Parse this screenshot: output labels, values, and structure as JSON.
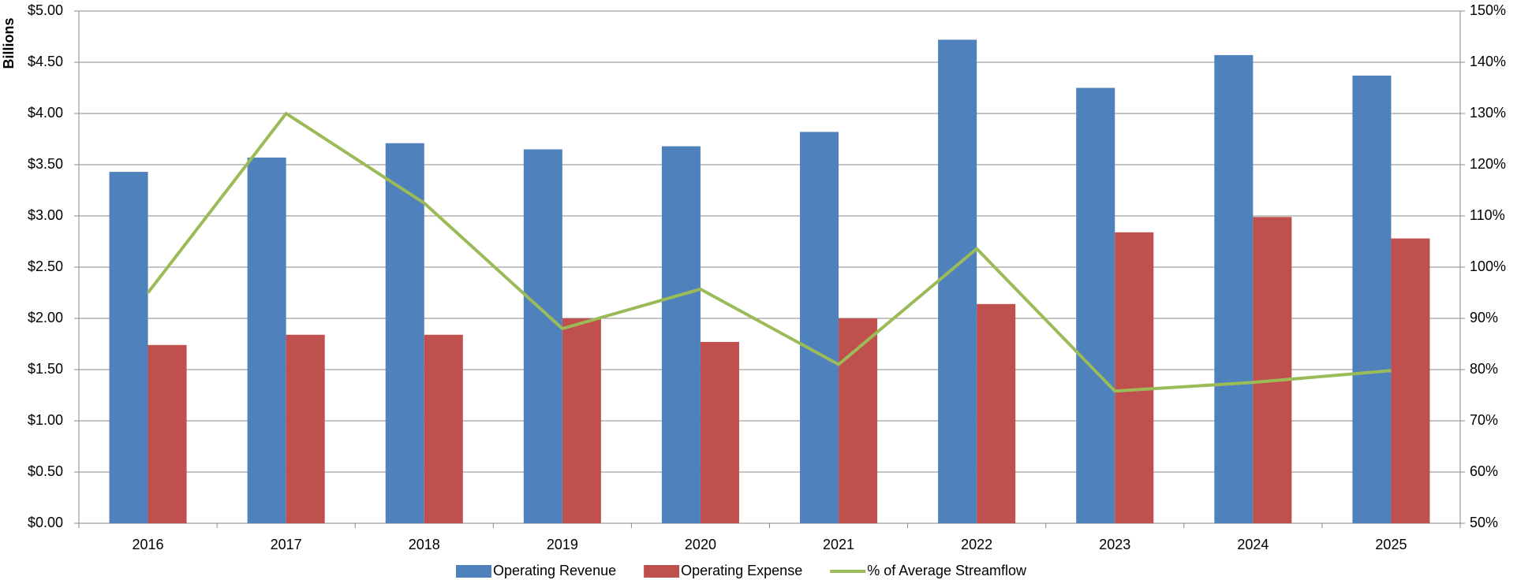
{
  "chart_data": {
    "type": "bar",
    "y_label": "Billions",
    "categories": [
      "2016",
      "2017",
      "2018",
      "2019",
      "2020",
      "2021",
      "2022",
      "2023",
      "2024",
      "2025"
    ],
    "series": [
      {
        "name": "Operating Revenue",
        "color": "#4f81bd",
        "type": "bar",
        "values": [
          3.43,
          3.57,
          3.71,
          3.65,
          3.68,
          3.82,
          4.72,
          4.25,
          4.57,
          4.37
        ]
      },
      {
        "name": "Operating Expense",
        "color": "#c0504d",
        "type": "bar",
        "values": [
          1.74,
          1.84,
          1.84,
          2.0,
          1.77,
          2.0,
          2.14,
          2.84,
          2.99,
          2.78
        ]
      },
      {
        "name": "% of Average Streamflow",
        "color": "#9bbb59",
        "type": "line",
        "axis": "y2",
        "values": [
          95,
          130,
          112.5,
          88,
          95.7,
          81,
          103.6,
          75.8,
          77.5,
          79.8
        ]
      }
    ],
    "ylim": [
      0,
      5
    ],
    "yticks": [
      {
        "value": 0,
        "label": "$0.00"
      },
      {
        "value": 0.5,
        "label": "$0.50"
      },
      {
        "value": 1,
        "label": "$1.00"
      },
      {
        "value": 1.5,
        "label": "$1.50"
      },
      {
        "value": 2,
        "label": "$2.00"
      },
      {
        "value": 2.5,
        "label": "$2.50"
      },
      {
        "value": 3,
        "label": "$3.00"
      },
      {
        "value": 3.5,
        "label": "$3.50"
      },
      {
        "value": 4,
        "label": "$4.00"
      },
      {
        "value": 4.5,
        "label": "$4.50"
      },
      {
        "value": 5,
        "label": "$5.00"
      }
    ],
    "y2lim": [
      50,
      150
    ],
    "y2ticks": [
      {
        "value": 50,
        "label": "50%"
      },
      {
        "value": 60,
        "label": "60%"
      },
      {
        "value": 70,
        "label": "70%"
      },
      {
        "value": 80,
        "label": "80%"
      },
      {
        "value": 90,
        "label": "90%"
      },
      {
        "value": 100,
        "label": "100%"
      },
      {
        "value": 110,
        "label": "110%"
      },
      {
        "value": 120,
        "label": "120%"
      },
      {
        "value": 130,
        "label": "130%"
      },
      {
        "value": 140,
        "label": "140%"
      },
      {
        "value": 150,
        "label": "150%"
      }
    ],
    "grid": true,
    "legend": "bottom"
  }
}
